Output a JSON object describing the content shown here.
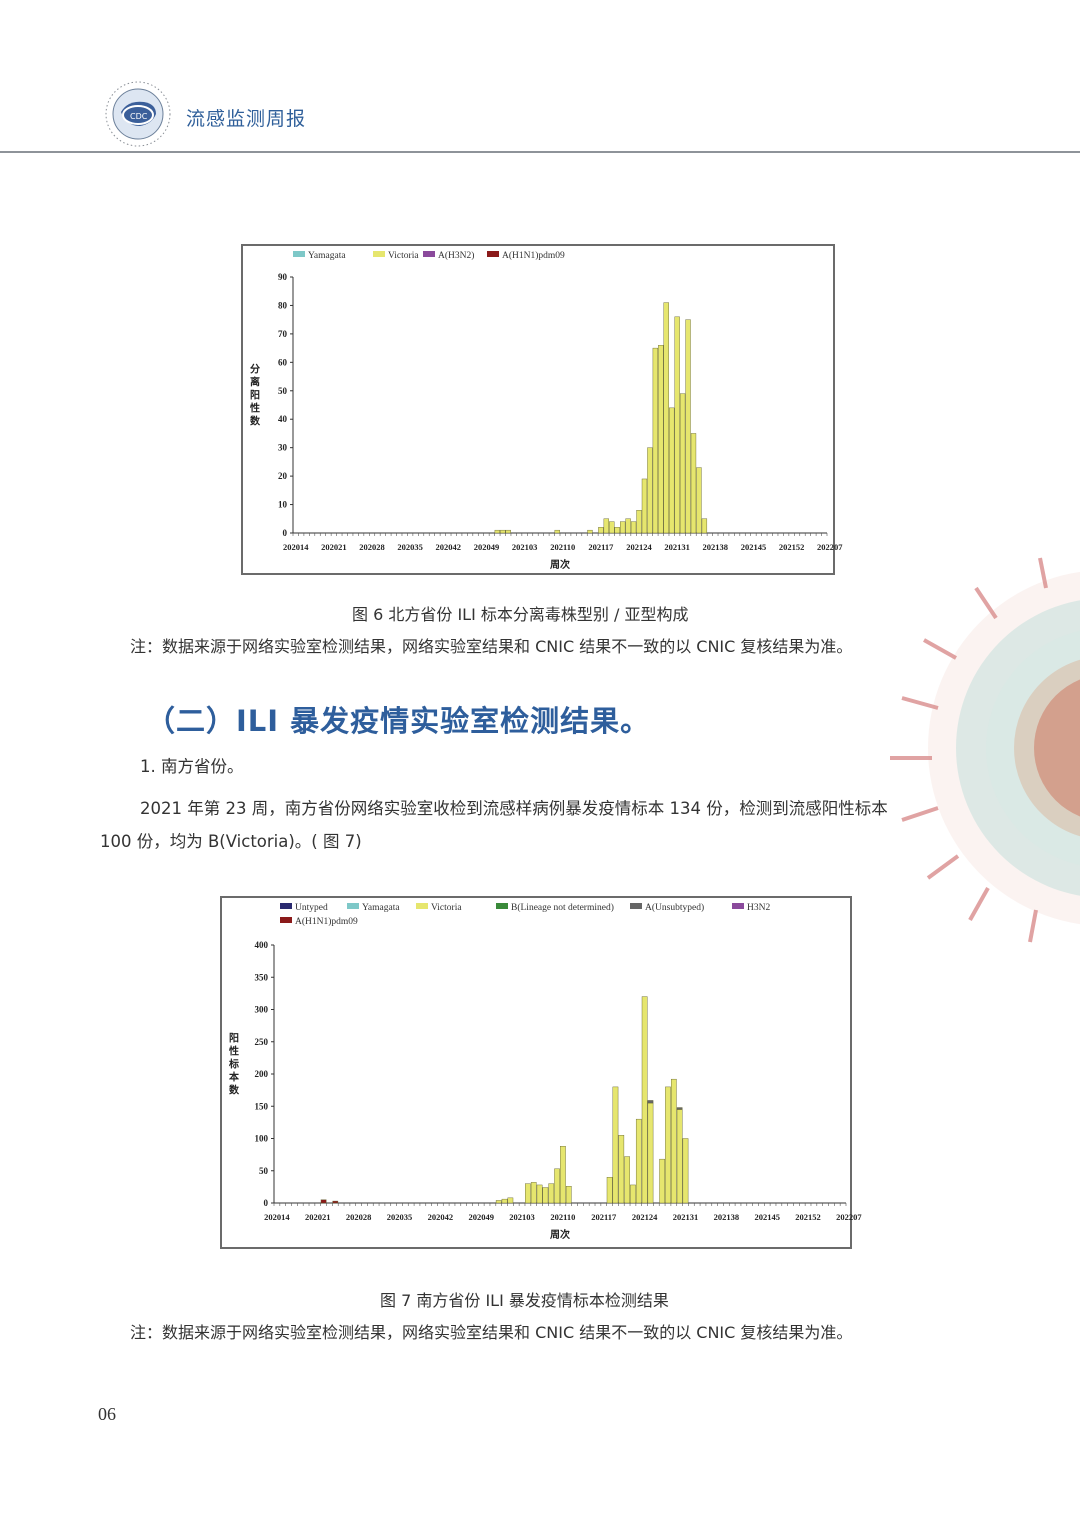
{
  "header": {
    "title": "流感监测周报"
  },
  "figure6": {
    "caption": "图 6  北方省份 ILI 标本分离毒株型别 / 亚型构成",
    "note": "注：数据来源于网络实验室检测结果，网络实验室结果和 CNIC 结果不一致的以 CNIC 复核结果为准。"
  },
  "section": {
    "title": "（二）ILI 暴发疫情实验室检测结果。",
    "sub": "1. 南方省份。",
    "para_line1": "2021 年第 23 周，南方省份网络实验室收检到流感样病例暴发疫情标本 134 份，检测到流感阳性标本",
    "para_line2": "100 份，均为 B(Victoria)。( 图 7)"
  },
  "figure7": {
    "caption": "图 7  南方省份 ILI 暴发疫情标本检测结果",
    "note": "注：数据来源于网络实验室检测结果，网络实验室结果和 CNIC 结果不一致的以 CNIC 复核结果为准。"
  },
  "page_number": "06",
  "colors": {
    "Victoria": "#e6e66e",
    "Yamagata": "#7ec8c8",
    "H3N2": "#8b4a9c",
    "H1N1pdm09": "#8b1a1a",
    "Untyped": "#2a2a70",
    "Blineage": "#3a8a3a",
    "Aunsub": "#666666"
  },
  "chart_data": [
    {
      "type": "bar",
      "stacked": true,
      "xlabel": "周次",
      "ylabel": "分离阳性数",
      "ylim": [
        0,
        90
      ],
      "yticks": [
        0,
        10,
        20,
        30,
        40,
        50,
        60,
        70,
        80,
        90
      ],
      "xticklabels": [
        "202014",
        "202021",
        "202028",
        "202035",
        "202042",
        "202049",
        "202103",
        "202110",
        "202117",
        "202124",
        "202131",
        "202138",
        "202145",
        "202152",
        "202207"
      ],
      "legend": [
        "Yamagata",
        "Victoria",
        "A(H3N2)",
        "A(H1N1)pdm09"
      ],
      "legend_colors": [
        "#7ec8c8",
        "#e6e66e",
        "#8b4a9c",
        "#8b1a1a"
      ],
      "week_count": 98,
      "series": [
        {
          "name": "Victoria",
          "values": [
            0,
            0,
            0,
            0,
            0,
            0,
            0,
            0,
            0,
            0,
            0,
            0,
            0,
            0,
            0,
            0,
            0,
            0,
            0,
            0,
            0,
            0,
            0,
            0,
            0,
            0,
            0,
            0,
            0,
            0,
            0,
            0,
            0,
            0,
            0,
            0,
            0,
            1,
            1,
            1,
            0,
            0,
            0,
            0,
            0,
            0,
            0,
            0,
            1,
            0,
            0,
            0,
            0,
            0,
            1,
            0,
            2,
            5,
            4,
            2,
            4,
            5,
            4,
            8,
            19,
            30,
            65,
            66,
            81,
            44,
            76,
            49,
            75,
            35,
            23,
            5,
            0,
            0,
            0,
            0,
            0,
            0,
            0,
            0,
            0,
            0,
            0,
            0,
            0,
            0,
            0,
            0,
            0,
            0,
            0,
            0,
            0,
            0
          ]
        }
      ]
    },
    {
      "type": "bar",
      "stacked": true,
      "xlabel": "周次",
      "ylabel": "阳性标本数",
      "ylim": [
        0,
        400
      ],
      "yticks": [
        0,
        50,
        100,
        150,
        200,
        250,
        300,
        350,
        400
      ],
      "xticklabels": [
        "202014",
        "202021",
        "202028",
        "202035",
        "202042",
        "202049",
        "202103",
        "202110",
        "202117",
        "202124",
        "202131",
        "202138",
        "202145",
        "202152",
        "202207"
      ],
      "legend": [
        "Untyped",
        "Yamagata",
        "Victoria",
        "B(Lineage not determined)",
        "A(Unsubtyped)",
        "H3N2",
        "A(H1N1)pdm09"
      ],
      "legend_colors": [
        "#2a2a70",
        "#7ec8c8",
        "#e6e66e",
        "#3a8a3a",
        "#666666",
        "#8b4a9c",
        "#8b1a1a"
      ],
      "week_count": 98,
      "series": [
        {
          "name": "Victoria",
          "values": [
            0,
            0,
            0,
            0,
            0,
            0,
            0,
            0,
            0,
            0,
            0,
            0,
            0,
            0,
            0,
            0,
            0,
            0,
            0,
            0,
            0,
            0,
            0,
            0,
            0,
            0,
            0,
            0,
            0,
            0,
            0,
            0,
            0,
            0,
            0,
            0,
            0,
            0,
            4,
            6,
            8,
            0,
            0,
            30,
            32,
            28,
            24,
            30,
            53,
            88,
            26,
            0,
            0,
            0,
            0,
            0,
            0,
            40,
            180,
            105,
            72,
            28,
            130,
            320,
            155,
            0,
            68,
            180,
            192,
            145,
            100,
            0,
            0,
            0,
            0,
            0,
            0,
            0,
            0,
            0,
            0,
            0,
            0,
            0,
            0,
            0,
            0,
            0,
            0,
            0,
            0,
            0,
            0,
            0,
            0,
            0,
            0,
            0
          ]
        },
        {
          "name": "A(H1N1)pdm09",
          "values": [
            0,
            0,
            0,
            0,
            0,
            0,
            0,
            0,
            5,
            0,
            3,
            0,
            0,
            0,
            0,
            0,
            0,
            0,
            0,
            0,
            0,
            0,
            0,
            0,
            0,
            0,
            0,
            0,
            0,
            0,
            0,
            0,
            0,
            0,
            0,
            0,
            0,
            0,
            0,
            0,
            0,
            0,
            0,
            0,
            0,
            0,
            0,
            0,
            0,
            0,
            0,
            0,
            0,
            0,
            0,
            0,
            0,
            0,
            0,
            0,
            0,
            0,
            0,
            0,
            0,
            0,
            0,
            0,
            0,
            0,
            0,
            0,
            0,
            0,
            0,
            0,
            0,
            0,
            0,
            0,
            0,
            0,
            0,
            0,
            0,
            0,
            0,
            0,
            0,
            0,
            0,
            0,
            0,
            0,
            0,
            0,
            0,
            0
          ]
        },
        {
          "name": "A(Unsubtyped)",
          "values": [
            0,
            0,
            0,
            0,
            0,
            0,
            0,
            0,
            0,
            0,
            0,
            0,
            0,
            0,
            0,
            0,
            0,
            0,
            0,
            0,
            0,
            0,
            0,
            0,
            0,
            0,
            0,
            0,
            0,
            0,
            0,
            0,
            0,
            0,
            0,
            0,
            0,
            0,
            0,
            0,
            0,
            0,
            0,
            0,
            0,
            0,
            0,
            0,
            0,
            0,
            0,
            0,
            0,
            0,
            0,
            0,
            0,
            0,
            0,
            0,
            0,
            0,
            0,
            0,
            4,
            0,
            0,
            0,
            0,
            3,
            0,
            0,
            0,
            0,
            0,
            0,
            0,
            0,
            0,
            0,
            0,
            0,
            0,
            0,
            0,
            0,
            0,
            0,
            0,
            0,
            0,
            0,
            0,
            0,
            0,
            0,
            0,
            0
          ]
        }
      ]
    }
  ]
}
